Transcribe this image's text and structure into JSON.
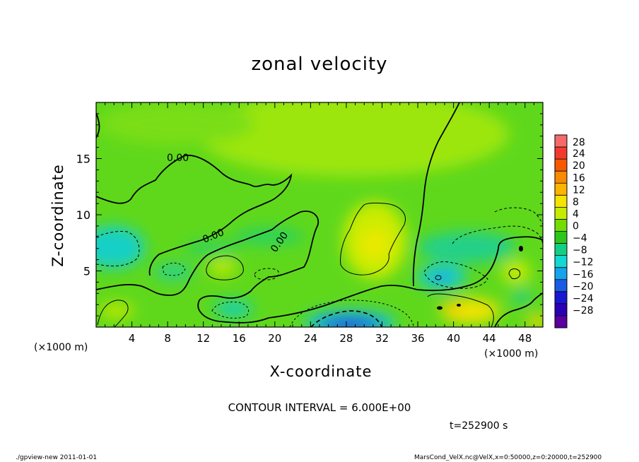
{
  "chart_data": {
    "type": "heatmap",
    "title": "zonal velocity",
    "xlabel": "X-coordinate",
    "ylabel": "Z-coordinate",
    "x_unit_label": "(×1000 m)",
    "x_ticks": [
      4,
      8,
      12,
      16,
      20,
      24,
      28,
      32,
      36,
      40,
      44,
      48
    ],
    "x_range": [
      0,
      50
    ],
    "y_ticks": [
      5,
      10,
      15
    ],
    "y_range": [
      0,
      20
    ],
    "colorbar": {
      "labels": [
        28,
        24,
        20,
        16,
        12,
        8,
        4,
        0,
        -4,
        -8,
        -12,
        -16,
        -20,
        -24,
        -28
      ],
      "colors": [
        "#f46a6a",
        "#f23b2e",
        "#f55a00",
        "#f98b00",
        "#fbb400",
        "#f5e300",
        "#c6ec00",
        "#73dc00",
        "#2cc71a",
        "#12cf83",
        "#12d9d2",
        "#14a4ec",
        "#1a5be6",
        "#1a17d3",
        "#2a00b4",
        "#5a00a0"
      ]
    },
    "contour_labels": [
      "0.00",
      "0.00",
      "0.00"
    ],
    "contour_interval_text": "CONTOUR INTERVAL = 6.000E+00",
    "time_text": "t=252900 s",
    "footer_left": "./gpview-new  2011-01-01",
    "footer_right": "MarsCond_VelX.nc@VelX,x=0:50000,z=0:20000,t=252900"
  }
}
